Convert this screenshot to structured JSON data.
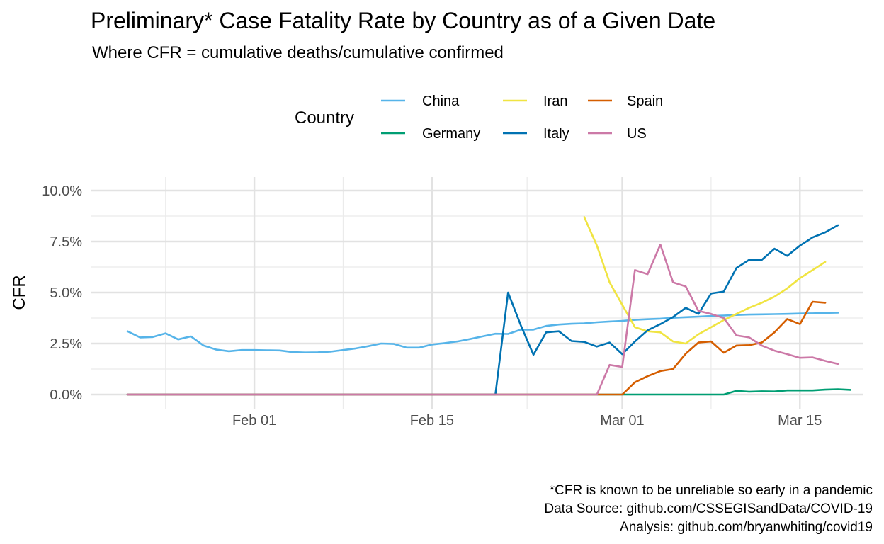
{
  "title": "Preliminary* Case Fatality Rate by Country as of a Given Date",
  "subtitle": "Where CFR = cumulative deaths/cumulative confirmed",
  "legend": {
    "title": "Country",
    "position": "top",
    "items": [
      {
        "name": "China",
        "color": "#56B4E9"
      },
      {
        "name": "Germany",
        "color": "#009E73"
      },
      {
        "name": "Iran",
        "color": "#F0E442"
      },
      {
        "name": "Italy",
        "color": "#0072B2"
      },
      {
        "name": "Spain",
        "color": "#D55E00"
      },
      {
        "name": "US",
        "color": "#CC79A7"
      }
    ]
  },
  "caption": [
    "*CFR is known to be unreliable so early in a pandemic",
    "Data Source: github.com/CSSEGISandData/COVID-19",
    "Analysis: github.com/bryanwhiting/covid19"
  ],
  "chart_data": {
    "type": "line",
    "title": "Preliminary* Case Fatality Rate by Country as of a Given Date",
    "subtitle": "Where CFR = cumulative deaths/cumulative confirmed",
    "xlabel": "",
    "ylabel": "CFR",
    "x_axis": {
      "ticks": [
        "Feb 01",
        "Feb 15",
        "Mar 01",
        "Mar 15"
      ],
      "range": [
        "2020-01-22",
        "2020-03-18"
      ]
    },
    "y_axis": {
      "ticks": [
        "0.0%",
        "2.5%",
        "5.0%",
        "7.5%",
        "10.0%"
      ],
      "range": [
        0,
        10
      ]
    },
    "grid": true,
    "legend_position": "top",
    "series": [
      {
        "name": "China",
        "start": "2020-01-22",
        "values": [
          3.1,
          2.8,
          2.82,
          3.0,
          2.7,
          2.85,
          2.4,
          2.2,
          2.12,
          2.18,
          2.18,
          2.17,
          2.16,
          2.08,
          2.06,
          2.07,
          2.1,
          2.18,
          2.26,
          2.37,
          2.5,
          2.48,
          2.3,
          2.3,
          2.45,
          2.52,
          2.6,
          2.72,
          2.85,
          2.98,
          2.97,
          3.18,
          3.18,
          3.36,
          3.43,
          3.47,
          3.49,
          3.54,
          3.58,
          3.61,
          3.66,
          3.69,
          3.72,
          3.76,
          3.79,
          3.82,
          3.85,
          3.87,
          3.9,
          3.92,
          3.93,
          3.94,
          3.95,
          3.97,
          3.98,
          4.0,
          4.01
        ]
      },
      {
        "name": "Germany",
        "start": "2020-01-22",
        "values": [
          0,
          0,
          0,
          0,
          0,
          0,
          0,
          0,
          0,
          0,
          0,
          0,
          0,
          0,
          0,
          0,
          0,
          0,
          0,
          0,
          0,
          0,
          0,
          0,
          0,
          0,
          0,
          0,
          0,
          0,
          0,
          0,
          0,
          0,
          0,
          0,
          0,
          0,
          0,
          0,
          0,
          0,
          0,
          0,
          0,
          0,
          0,
          0,
          0.18,
          0.14,
          0.16,
          0.15,
          0.2,
          0.2,
          0.2,
          0.24,
          0.26,
          0.23
        ]
      },
      {
        "name": "Iran",
        "start": "2020-02-27",
        "values": [
          8.7,
          7.3,
          5.5,
          4.4,
          3.3,
          3.1,
          3.05,
          2.6,
          2.5,
          2.95,
          3.3,
          3.65,
          3.95,
          4.25,
          4.5,
          4.8,
          5.2,
          5.7,
          6.1,
          6.5
        ]
      },
      {
        "name": "Italy",
        "start": "2020-01-22",
        "values": [
          0,
          0,
          0,
          0,
          0,
          0,
          0,
          0,
          0,
          0,
          0,
          0,
          0,
          0,
          0,
          0,
          0,
          0,
          0,
          0,
          0,
          0,
          0,
          0,
          0,
          0,
          0,
          0,
          0,
          0,
          5.0,
          3.4,
          1.95,
          3.05,
          3.1,
          2.62,
          2.58,
          2.35,
          2.55,
          1.98,
          2.6,
          3.15,
          3.45,
          3.8,
          4.25,
          3.95,
          4.95,
          5.05,
          6.2,
          6.6,
          6.6,
          7.15,
          6.8,
          7.3,
          7.7,
          7.95,
          8.3
        ]
      },
      {
        "name": "Spain",
        "start": "2020-01-22",
        "values": [
          0,
          0,
          0,
          0,
          0,
          0,
          0,
          0,
          0,
          0,
          0,
          0,
          0,
          0,
          0,
          0,
          0,
          0,
          0,
          0,
          0,
          0,
          0,
          0,
          0,
          0,
          0,
          0,
          0,
          0,
          0,
          0,
          0,
          0,
          0,
          0,
          0,
          0,
          0,
          0,
          0.6,
          0.9,
          1.15,
          1.25,
          2.0,
          2.55,
          2.6,
          2.05,
          2.4,
          2.42,
          2.55,
          3.05,
          3.7,
          3.45,
          4.55,
          4.5
        ]
      },
      {
        "name": "US",
        "start": "2020-01-22",
        "values": [
          0,
          0,
          0,
          0,
          0,
          0,
          0,
          0,
          0,
          0,
          0,
          0,
          0,
          0,
          0,
          0,
          0,
          0,
          0,
          0,
          0,
          0,
          0,
          0,
          0,
          0,
          0,
          0,
          0,
          0,
          0,
          0,
          0,
          0,
          0,
          0,
          0,
          0,
          1.45,
          1.35,
          6.1,
          5.9,
          7.35,
          5.5,
          5.3,
          4.1,
          3.95,
          3.75,
          2.9,
          2.8,
          2.4,
          2.15,
          1.98,
          1.8,
          1.82,
          1.65,
          1.5
        ]
      }
    ]
  }
}
